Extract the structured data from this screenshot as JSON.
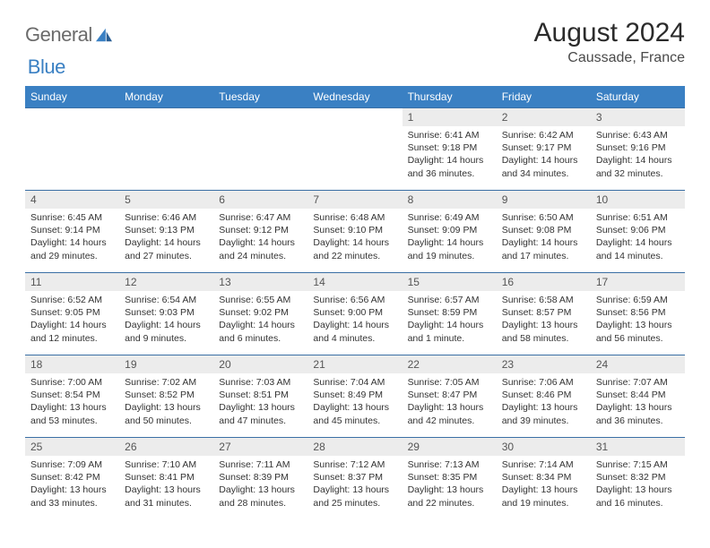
{
  "brand": {
    "part1": "General",
    "part2": "Blue"
  },
  "title": "August 2024",
  "location": "Caussade, France",
  "colors": {
    "header_bg": "#3a80c3",
    "header_text": "#ffffff",
    "daynum_bg": "#ececec",
    "row_border": "#3a6fa5",
    "logo_gray": "#6b6b6b",
    "logo_blue": "#3a80c3"
  },
  "weekdays": [
    "Sunday",
    "Monday",
    "Tuesday",
    "Wednesday",
    "Thursday",
    "Friday",
    "Saturday"
  ],
  "weeks": [
    [
      {
        "n": "",
        "sr": "",
        "ss": "",
        "dl": "",
        "empty": true
      },
      {
        "n": "",
        "sr": "",
        "ss": "",
        "dl": "",
        "empty": true
      },
      {
        "n": "",
        "sr": "",
        "ss": "",
        "dl": "",
        "empty": true
      },
      {
        "n": "",
        "sr": "",
        "ss": "",
        "dl": "",
        "empty": true
      },
      {
        "n": "1",
        "sr": "Sunrise: 6:41 AM",
        "ss": "Sunset: 9:18 PM",
        "dl": "Daylight: 14 hours and 36 minutes."
      },
      {
        "n": "2",
        "sr": "Sunrise: 6:42 AM",
        "ss": "Sunset: 9:17 PM",
        "dl": "Daylight: 14 hours and 34 minutes."
      },
      {
        "n": "3",
        "sr": "Sunrise: 6:43 AM",
        "ss": "Sunset: 9:16 PM",
        "dl": "Daylight: 14 hours and 32 minutes."
      }
    ],
    [
      {
        "n": "4",
        "sr": "Sunrise: 6:45 AM",
        "ss": "Sunset: 9:14 PM",
        "dl": "Daylight: 14 hours and 29 minutes."
      },
      {
        "n": "5",
        "sr": "Sunrise: 6:46 AM",
        "ss": "Sunset: 9:13 PM",
        "dl": "Daylight: 14 hours and 27 minutes."
      },
      {
        "n": "6",
        "sr": "Sunrise: 6:47 AM",
        "ss": "Sunset: 9:12 PM",
        "dl": "Daylight: 14 hours and 24 minutes."
      },
      {
        "n": "7",
        "sr": "Sunrise: 6:48 AM",
        "ss": "Sunset: 9:10 PM",
        "dl": "Daylight: 14 hours and 22 minutes."
      },
      {
        "n": "8",
        "sr": "Sunrise: 6:49 AM",
        "ss": "Sunset: 9:09 PM",
        "dl": "Daylight: 14 hours and 19 minutes."
      },
      {
        "n": "9",
        "sr": "Sunrise: 6:50 AM",
        "ss": "Sunset: 9:08 PM",
        "dl": "Daylight: 14 hours and 17 minutes."
      },
      {
        "n": "10",
        "sr": "Sunrise: 6:51 AM",
        "ss": "Sunset: 9:06 PM",
        "dl": "Daylight: 14 hours and 14 minutes."
      }
    ],
    [
      {
        "n": "11",
        "sr": "Sunrise: 6:52 AM",
        "ss": "Sunset: 9:05 PM",
        "dl": "Daylight: 14 hours and 12 minutes."
      },
      {
        "n": "12",
        "sr": "Sunrise: 6:54 AM",
        "ss": "Sunset: 9:03 PM",
        "dl": "Daylight: 14 hours and 9 minutes."
      },
      {
        "n": "13",
        "sr": "Sunrise: 6:55 AM",
        "ss": "Sunset: 9:02 PM",
        "dl": "Daylight: 14 hours and 6 minutes."
      },
      {
        "n": "14",
        "sr": "Sunrise: 6:56 AM",
        "ss": "Sunset: 9:00 PM",
        "dl": "Daylight: 14 hours and 4 minutes."
      },
      {
        "n": "15",
        "sr": "Sunrise: 6:57 AM",
        "ss": "Sunset: 8:59 PM",
        "dl": "Daylight: 14 hours and 1 minute."
      },
      {
        "n": "16",
        "sr": "Sunrise: 6:58 AM",
        "ss": "Sunset: 8:57 PM",
        "dl": "Daylight: 13 hours and 58 minutes."
      },
      {
        "n": "17",
        "sr": "Sunrise: 6:59 AM",
        "ss": "Sunset: 8:56 PM",
        "dl": "Daylight: 13 hours and 56 minutes."
      }
    ],
    [
      {
        "n": "18",
        "sr": "Sunrise: 7:00 AM",
        "ss": "Sunset: 8:54 PM",
        "dl": "Daylight: 13 hours and 53 minutes."
      },
      {
        "n": "19",
        "sr": "Sunrise: 7:02 AM",
        "ss": "Sunset: 8:52 PM",
        "dl": "Daylight: 13 hours and 50 minutes."
      },
      {
        "n": "20",
        "sr": "Sunrise: 7:03 AM",
        "ss": "Sunset: 8:51 PM",
        "dl": "Daylight: 13 hours and 47 minutes."
      },
      {
        "n": "21",
        "sr": "Sunrise: 7:04 AM",
        "ss": "Sunset: 8:49 PM",
        "dl": "Daylight: 13 hours and 45 minutes."
      },
      {
        "n": "22",
        "sr": "Sunrise: 7:05 AM",
        "ss": "Sunset: 8:47 PM",
        "dl": "Daylight: 13 hours and 42 minutes."
      },
      {
        "n": "23",
        "sr": "Sunrise: 7:06 AM",
        "ss": "Sunset: 8:46 PM",
        "dl": "Daylight: 13 hours and 39 minutes."
      },
      {
        "n": "24",
        "sr": "Sunrise: 7:07 AM",
        "ss": "Sunset: 8:44 PM",
        "dl": "Daylight: 13 hours and 36 minutes."
      }
    ],
    [
      {
        "n": "25",
        "sr": "Sunrise: 7:09 AM",
        "ss": "Sunset: 8:42 PM",
        "dl": "Daylight: 13 hours and 33 minutes."
      },
      {
        "n": "26",
        "sr": "Sunrise: 7:10 AM",
        "ss": "Sunset: 8:41 PM",
        "dl": "Daylight: 13 hours and 31 minutes."
      },
      {
        "n": "27",
        "sr": "Sunrise: 7:11 AM",
        "ss": "Sunset: 8:39 PM",
        "dl": "Daylight: 13 hours and 28 minutes."
      },
      {
        "n": "28",
        "sr": "Sunrise: 7:12 AM",
        "ss": "Sunset: 8:37 PM",
        "dl": "Daylight: 13 hours and 25 minutes."
      },
      {
        "n": "29",
        "sr": "Sunrise: 7:13 AM",
        "ss": "Sunset: 8:35 PM",
        "dl": "Daylight: 13 hours and 22 minutes."
      },
      {
        "n": "30",
        "sr": "Sunrise: 7:14 AM",
        "ss": "Sunset: 8:34 PM",
        "dl": "Daylight: 13 hours and 19 minutes."
      },
      {
        "n": "31",
        "sr": "Sunrise: 7:15 AM",
        "ss": "Sunset: 8:32 PM",
        "dl": "Daylight: 13 hours and 16 minutes."
      }
    ]
  ]
}
